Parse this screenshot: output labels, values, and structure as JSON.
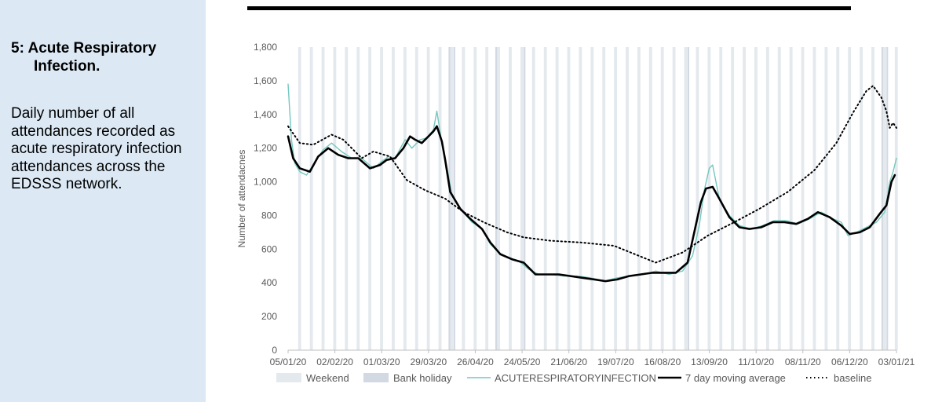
{
  "section": {
    "number_title": "5: Acute Respiratory",
    "title_line2": "Infection.",
    "description": "Daily number of all attendances recorded as acute respiratory infection attendances across the EDSSS network."
  },
  "chart_data": {
    "type": "line",
    "ylabel": "Number of attendacnes",
    "xlabel": "",
    "ylim": [
      0,
      1800
    ],
    "y_ticks": [
      0,
      200,
      400,
      600,
      800,
      1000,
      1200,
      1400,
      1600,
      1800
    ],
    "y_tick_labels": [
      "0",
      "200",
      "400",
      "600",
      "800",
      "1,000",
      "1,200",
      "1,400",
      "1,600",
      "1,800"
    ],
    "x_start": "2020-01-05",
    "x_end": "2021-01-03",
    "x_tick_labels": [
      "05/01/20",
      "02/02/20",
      "01/03/20",
      "29/03/20",
      "26/04/20",
      "24/05/20",
      "21/06/20",
      "19/07/20",
      "16/08/20",
      "13/09/20",
      "11/10/20",
      "08/11/20",
      "06/12/20",
      "03/01/21"
    ],
    "bank_holidays": [
      "2020-04-10",
      "2020-04-13",
      "2020-05-08",
      "2020-05-25",
      "2020-08-31",
      "2020-12-25",
      "2020-12-28"
    ],
    "grid": false,
    "legend_position": "bottom",
    "legend": [
      {
        "label": "Weekend",
        "kind": "band",
        "color": "#e4e9ee"
      },
      {
        "label": "Bank holiday",
        "kind": "band",
        "color": "#d2d9e2"
      },
      {
        "label": "ACUTERESPIRATORYINFECTION",
        "kind": "line",
        "color": "#74c7c0"
      },
      {
        "label": "7 day moving average",
        "kind": "line",
        "color": "#000000"
      },
      {
        "label": "baseline",
        "kind": "dotted",
        "color": "#000000"
      }
    ],
    "series": [
      {
        "name": "ACUTERESPIRATORYINFECTION",
        "style": "daily",
        "color": "#74c7c0",
        "points": [
          [
            "2020-01-05",
            1580
          ],
          [
            "2020-01-07",
            1250
          ],
          [
            "2020-01-09",
            1110
          ],
          [
            "2020-01-12",
            1060
          ],
          [
            "2020-01-16",
            1040
          ],
          [
            "2020-01-20",
            1100
          ],
          [
            "2020-01-26",
            1190
          ],
          [
            "2020-01-31",
            1230
          ],
          [
            "2020-02-06",
            1180
          ],
          [
            "2020-02-12",
            1140
          ],
          [
            "2020-02-18",
            1140
          ],
          [
            "2020-02-25",
            1080
          ],
          [
            "2020-03-01",
            1120
          ],
          [
            "2020-03-05",
            1150
          ],
          [
            "2020-03-09",
            1140
          ],
          [
            "2020-03-15",
            1250
          ],
          [
            "2020-03-19",
            1200
          ],
          [
            "2020-03-24",
            1250
          ],
          [
            "2020-03-28",
            1260
          ],
          [
            "2020-04-01",
            1310
          ],
          [
            "2020-04-03",
            1420
          ],
          [
            "2020-04-06",
            1230
          ],
          [
            "2020-04-09",
            1090
          ],
          [
            "2020-04-12",
            920
          ],
          [
            "2020-04-18",
            830
          ],
          [
            "2020-04-24",
            760
          ],
          [
            "2020-04-30",
            720
          ],
          [
            "2020-05-05",
            630
          ],
          [
            "2020-05-10",
            580
          ],
          [
            "2020-05-16",
            550
          ],
          [
            "2020-05-22",
            530
          ],
          [
            "2020-05-28",
            480
          ],
          [
            "2020-06-03",
            450
          ],
          [
            "2020-06-10",
            450
          ],
          [
            "2020-06-18",
            440
          ],
          [
            "2020-06-26",
            440
          ],
          [
            "2020-07-04",
            430
          ],
          [
            "2020-07-12",
            410
          ],
          [
            "2020-07-20",
            430
          ],
          [
            "2020-07-28",
            440
          ],
          [
            "2020-08-05",
            450
          ],
          [
            "2020-08-12",
            470
          ],
          [
            "2020-08-20",
            450
          ],
          [
            "2020-08-28",
            470
          ],
          [
            "2020-09-03",
            560
          ],
          [
            "2020-09-07",
            740
          ],
          [
            "2020-09-10",
            950
          ],
          [
            "2020-09-13",
            1080
          ],
          [
            "2020-09-15",
            1100
          ],
          [
            "2020-09-19",
            900
          ],
          [
            "2020-09-25",
            800
          ],
          [
            "2020-10-01",
            740
          ],
          [
            "2020-10-08",
            720
          ],
          [
            "2020-10-15",
            740
          ],
          [
            "2020-10-22",
            770
          ],
          [
            "2020-10-29",
            770
          ],
          [
            "2020-11-05",
            750
          ],
          [
            "2020-11-12",
            780
          ],
          [
            "2020-11-19",
            820
          ],
          [
            "2020-11-26",
            780
          ],
          [
            "2020-12-01",
            760
          ],
          [
            "2020-12-05",
            680
          ],
          [
            "2020-12-10",
            700
          ],
          [
            "2020-12-16",
            730
          ],
          [
            "2020-12-22",
            760
          ],
          [
            "2020-12-27",
            820
          ],
          [
            "2020-12-30",
            1000
          ],
          [
            "2021-01-01",
            1060
          ],
          [
            "2021-01-03",
            1140
          ]
        ]
      },
      {
        "name": "7 day moving average",
        "style": "bold",
        "color": "#000000",
        "points": [
          [
            "2020-01-05",
            1270
          ],
          [
            "2020-01-08",
            1140
          ],
          [
            "2020-01-12",
            1080
          ],
          [
            "2020-01-18",
            1060
          ],
          [
            "2020-01-23",
            1150
          ],
          [
            "2020-01-29",
            1200
          ],
          [
            "2020-02-04",
            1160
          ],
          [
            "2020-02-10",
            1140
          ],
          [
            "2020-02-16",
            1140
          ],
          [
            "2020-02-23",
            1080
          ],
          [
            "2020-02-29",
            1100
          ],
          [
            "2020-03-04",
            1130
          ],
          [
            "2020-03-09",
            1140
          ],
          [
            "2020-03-14",
            1200
          ],
          [
            "2020-03-18",
            1270
          ],
          [
            "2020-03-21",
            1250
          ],
          [
            "2020-03-25",
            1230
          ],
          [
            "2020-03-29",
            1270
          ],
          [
            "2020-04-01",
            1300
          ],
          [
            "2020-04-03",
            1330
          ],
          [
            "2020-04-06",
            1240
          ],
          [
            "2020-04-08",
            1130
          ],
          [
            "2020-04-11",
            940
          ],
          [
            "2020-04-17",
            840
          ],
          [
            "2020-04-23",
            780
          ],
          [
            "2020-04-30",
            720
          ],
          [
            "2020-05-05",
            640
          ],
          [
            "2020-05-11",
            570
          ],
          [
            "2020-05-18",
            540
          ],
          [
            "2020-05-25",
            520
          ],
          [
            "2020-06-01",
            450
          ],
          [
            "2020-06-08",
            450
          ],
          [
            "2020-06-15",
            450
          ],
          [
            "2020-06-22",
            440
          ],
          [
            "2020-06-29",
            430
          ],
          [
            "2020-07-06",
            420
          ],
          [
            "2020-07-13",
            410
          ],
          [
            "2020-07-20",
            420
          ],
          [
            "2020-07-27",
            440
          ],
          [
            "2020-08-03",
            450
          ],
          [
            "2020-08-10",
            460
          ],
          [
            "2020-08-17",
            460
          ],
          [
            "2020-08-24",
            460
          ],
          [
            "2020-08-31",
            520
          ],
          [
            "2020-09-04",
            700
          ],
          [
            "2020-09-08",
            880
          ],
          [
            "2020-09-11",
            960
          ],
          [
            "2020-09-15",
            970
          ],
          [
            "2020-09-19",
            900
          ],
          [
            "2020-09-25",
            790
          ],
          [
            "2020-10-01",
            730
          ],
          [
            "2020-10-07",
            720
          ],
          [
            "2020-10-14",
            730
          ],
          [
            "2020-10-21",
            760
          ],
          [
            "2020-10-28",
            760
          ],
          [
            "2020-11-04",
            750
          ],
          [
            "2020-11-11",
            780
          ],
          [
            "2020-11-17",
            820
          ],
          [
            "2020-11-24",
            790
          ],
          [
            "2020-12-01",
            740
          ],
          [
            "2020-12-06",
            690
          ],
          [
            "2020-12-12",
            700
          ],
          [
            "2020-12-18",
            730
          ],
          [
            "2020-12-24",
            810
          ],
          [
            "2020-12-28",
            860
          ],
          [
            "2020-12-31",
            1000
          ],
          [
            "2021-01-02",
            1040
          ]
        ]
      },
      {
        "name": "baseline",
        "style": "dotted",
        "color": "#000000",
        "points": [
          [
            "2020-01-05",
            1330
          ],
          [
            "2020-01-12",
            1230
          ],
          [
            "2020-01-20",
            1220
          ],
          [
            "2020-01-31",
            1280
          ],
          [
            "2020-02-07",
            1250
          ],
          [
            "2020-02-18",
            1140
          ],
          [
            "2020-02-25",
            1180
          ],
          [
            "2020-03-06",
            1150
          ],
          [
            "2020-03-16",
            1010
          ],
          [
            "2020-03-27",
            950
          ],
          [
            "2020-04-08",
            900
          ],
          [
            "2020-04-19",
            820
          ],
          [
            "2020-05-01",
            760
          ],
          [
            "2020-05-15",
            700
          ],
          [
            "2020-05-25",
            670
          ],
          [
            "2020-06-10",
            650
          ],
          [
            "2020-06-28",
            640
          ],
          [
            "2020-07-18",
            620
          ],
          [
            "2020-08-02",
            560
          ],
          [
            "2020-08-12",
            520
          ],
          [
            "2020-08-28",
            580
          ],
          [
            "2020-09-12",
            680
          ],
          [
            "2020-09-28",
            760
          ],
          [
            "2020-10-13",
            840
          ],
          [
            "2020-10-30",
            940
          ],
          [
            "2020-11-15",
            1070
          ],
          [
            "2020-11-28",
            1230
          ],
          [
            "2020-12-08",
            1410
          ],
          [
            "2020-12-16",
            1540
          ],
          [
            "2020-12-20",
            1570
          ],
          [
            "2020-12-25",
            1500
          ],
          [
            "2020-12-28",
            1420
          ],
          [
            "2020-12-30",
            1320
          ],
          [
            "2021-01-01",
            1350
          ],
          [
            "2021-01-03",
            1320
          ]
        ]
      }
    ]
  }
}
